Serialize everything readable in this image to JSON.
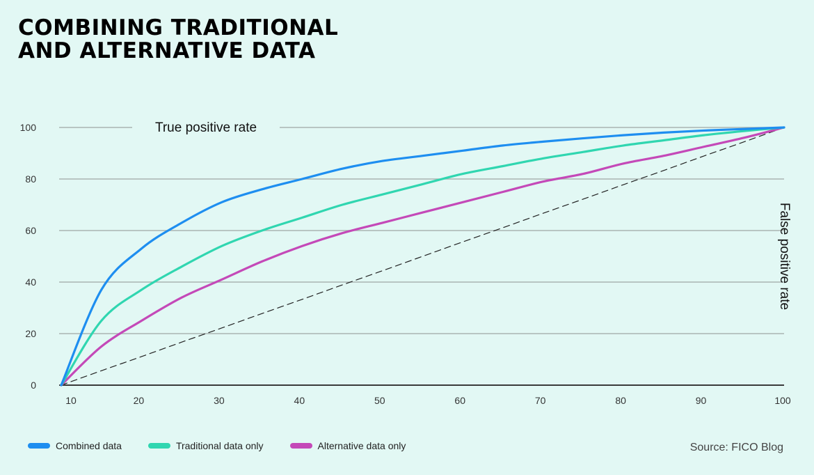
{
  "title_line1": "COMBINING TRADITIONAL",
  "title_line2": "AND ALTERNATIVE DATA",
  "source": "Source: FICO Blog",
  "chart_data": {
    "type": "line",
    "title": "COMBINING TRADITIONAL AND ALTERNATIVE DATA",
    "ylabel": "True positive rate",
    "xlabel": "False positive rate",
    "xlim": [
      10,
      100
    ],
    "ylim": [
      0,
      100
    ],
    "x_ticks": [
      10,
      20,
      30,
      40,
      50,
      60,
      70,
      80,
      90,
      100
    ],
    "y_ticks": [
      0,
      20,
      40,
      60,
      80,
      100
    ],
    "grid": "horizontal",
    "legend_position": "bottom-left",
    "x": [
      10,
      15,
      20,
      25,
      30,
      35,
      40,
      45,
      50,
      55,
      60,
      65,
      70,
      75,
      80,
      85,
      90,
      95,
      100
    ],
    "series": [
      {
        "name": "Combined data",
        "color": "#1e8ef0",
        "values": [
          0,
          37,
          53,
          63,
          71,
          76,
          80,
          84,
          87,
          89,
          91,
          93,
          94.5,
          95.8,
          97,
          98,
          98.8,
          99.4,
          100
        ]
      },
      {
        "name": "Traditional data only",
        "color": "#30d6b0",
        "values": [
          0,
          25,
          37,
          46,
          54,
          60,
          65,
          70,
          74,
          78,
          82,
          85,
          88,
          90.5,
          93,
          95,
          97,
          98.6,
          100
        ]
      },
      {
        "name": "Alternative data only",
        "color": "#c449b8",
        "values": [
          0,
          15,
          25,
          34,
          41,
          48,
          54,
          59,
          63,
          67,
          71,
          75,
          79,
          82,
          86,
          89,
          92.5,
          96,
          100
        ]
      },
      {
        "color": "#222222",
        "dashed": true,
        "values": [
          0,
          5.6,
          11.1,
          16.7,
          22.2,
          27.8,
          33.3,
          38.9,
          44.4,
          50,
          55.6,
          61.1,
          66.7,
          72.2,
          77.8,
          83.3,
          88.9,
          94.4,
          100
        ]
      }
    ]
  },
  "legend": [
    {
      "label": "Combined data",
      "color": "#1e8ef0"
    },
    {
      "label": "Traditional data only",
      "color": "#30d6b0"
    },
    {
      "label": "Alternative data only",
      "color": "#c449b8"
    }
  ]
}
